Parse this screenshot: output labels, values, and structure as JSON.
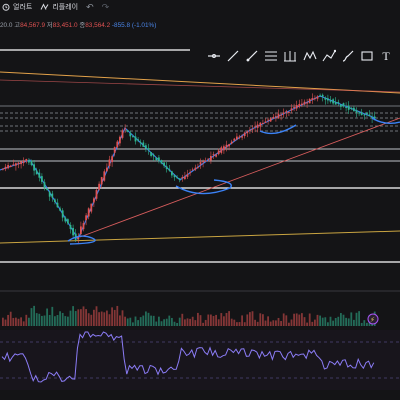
{
  "topbar": {
    "alert_label": "얼러트",
    "replay_label": "리플레이",
    "undo_icon": "undo-icon",
    "redo_icon": "redo-icon"
  },
  "ohlc": {
    "open_value": "20.0",
    "high_label": "고",
    "high_value": "84,567.9",
    "low_label": "저",
    "low_value": "83,451.0",
    "close_label": "종",
    "close_value": "83,564.2",
    "change_value": "-855.8 (-1.01%)"
  },
  "toolbar": {
    "tools": [
      "horizontal-line-tool",
      "trend-line-tool",
      "ray-tool",
      "fib-retracement-tool",
      "pitchfork-tool",
      "pattern-tool",
      "measure-tool",
      "brush-tool",
      "rectangle-tool",
      "text-tool"
    ],
    "text_tool_label": "T"
  },
  "colors": {
    "up": "#e05252",
    "down": "#2fb58f",
    "rsi": "#8b7cf6",
    "annotation": "#3b82f6",
    "trendline_orange": "#e3a24a",
    "trendline_red": "#d65c5c",
    "level_white": "#ffffff"
  },
  "indicator": {
    "badge": "⚡"
  }
}
